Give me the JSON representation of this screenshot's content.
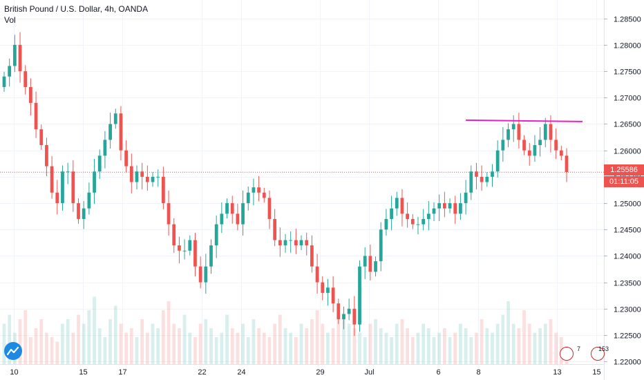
{
  "header": {
    "symbol_title": "British Pound / U.S. Dollar, 4h, OANDA",
    "volume_label": "Vol"
  },
  "price_axis": {
    "last_price": "1.25586",
    "countdown": "01:11:05"
  },
  "events": {
    "event_1_count": "7",
    "event_2_count": "153"
  },
  "colors": {
    "up": "#26a69a",
    "down": "#ef5350",
    "resistance_line": "#e91ec8",
    "grid": "#f0f3fa"
  },
  "chart_data": {
    "type": "candlestick",
    "title": "British Pound / U.S. Dollar, 4h, OANDA",
    "y_ticks": [
      1.22,
      1.225,
      1.23,
      1.235,
      1.24,
      1.245,
      1.25,
      1.255,
      1.26,
      1.265,
      1.27,
      1.275,
      1.28,
      1.285
    ],
    "y_tick_labels": [
      "1.22000",
      "1.22500",
      "1.23000",
      "1.23500",
      "1.24000",
      "1.24500",
      "1.25000",
      "1.25500",
      "1.26000",
      "1.26500",
      "1.27000",
      "1.27500",
      "1.28000",
      "1.28500"
    ],
    "ylim": [
      1.2195,
      1.2885
    ],
    "x_tick_labels": [
      "10",
      "15",
      "17",
      "22",
      "24",
      "29",
      "Jul",
      "6",
      "8",
      "13",
      "15"
    ],
    "last_price": 1.25586,
    "resistance_level": 1.2656,
    "grid": true,
    "closes": [
      1.274,
      1.276,
      1.28,
      1.275,
      1.272,
      1.269,
      1.264,
      1.261,
      1.257,
      1.252,
      1.25,
      1.256,
      1.256,
      1.25,
      1.247,
      1.249,
      1.252,
      1.256,
      1.259,
      1.262,
      1.265,
      1.267,
      1.26,
      1.257,
      1.254,
      1.256,
      1.255,
      1.254,
      1.255,
      1.255,
      1.25,
      1.246,
      1.242,
      1.241,
      1.241,
      1.243,
      1.238,
      1.235,
      1.238,
      1.242,
      1.246,
      1.248,
      1.25,
      1.248,
      1.246,
      1.25,
      1.252,
      1.253,
      1.252,
      1.251,
      1.247,
      1.243,
      1.242,
      1.243,
      1.243,
      1.242,
      1.243,
      1.242,
      1.238,
      1.235,
      1.233,
      1.234,
      1.231,
      1.228,
      1.229,
      1.23,
      1.227,
      1.238,
      1.24,
      1.237,
      1.239,
      1.245,
      1.247,
      1.249,
      1.251,
      1.248,
      1.247,
      1.246,
      1.246,
      1.247,
      1.248,
      1.249,
      1.25,
      1.249,
      1.25,
      1.248,
      1.25,
      1.252,
      1.256,
      1.255,
      1.254,
      1.255,
      1.256,
      1.26,
      1.262,
      1.264,
      1.265,
      1.262,
      1.26,
      1.259,
      1.261,
      1.262,
      1.265,
      1.262,
      1.26,
      1.259,
      1.2559
    ],
    "volume_relative": [
      0.45,
      0.55,
      0.35,
      0.5,
      0.6,
      0.3,
      0.4,
      0.5,
      0.35,
      0.3,
      0.25,
      0.45,
      0.5,
      0.35,
      0.55,
      0.45,
      0.6,
      0.75,
      0.4,
      0.3,
      0.5,
      0.65,
      0.45,
      0.35,
      0.4,
      0.3,
      0.5,
      0.35,
      0.45,
      0.4,
      0.6,
      0.7,
      0.45,
      0.4,
      0.55,
      0.35,
      0.3,
      0.45,
      0.5,
      0.4,
      0.3,
      0.35,
      0.55,
      0.4,
      0.35,
      0.45,
      0.3,
      0.5,
      0.4,
      0.35,
      0.3,
      0.45,
      0.55,
      0.4,
      0.35,
      0.3,
      0.45,
      0.4,
      0.5,
      0.6,
      0.45,
      0.35,
      0.4,
      0.5,
      0.55,
      0.45,
      0.4,
      0.35,
      0.3,
      0.45,
      0.5,
      0.4,
      0.35,
      0.3,
      0.45,
      0.5,
      0.4,
      0.3,
      0.35,
      0.45,
      0.4,
      0.3,
      0.35,
      0.4,
      0.3,
      0.35,
      0.45,
      0.4,
      0.3,
      0.35,
      0.5,
      0.4,
      0.35,
      0.45,
      0.55,
      0.7,
      0.45,
      0.4,
      0.6,
      0.45,
      0.35,
      0.4,
      0.45,
      0.5,
      0.35,
      0.3,
      0.2
    ]
  }
}
